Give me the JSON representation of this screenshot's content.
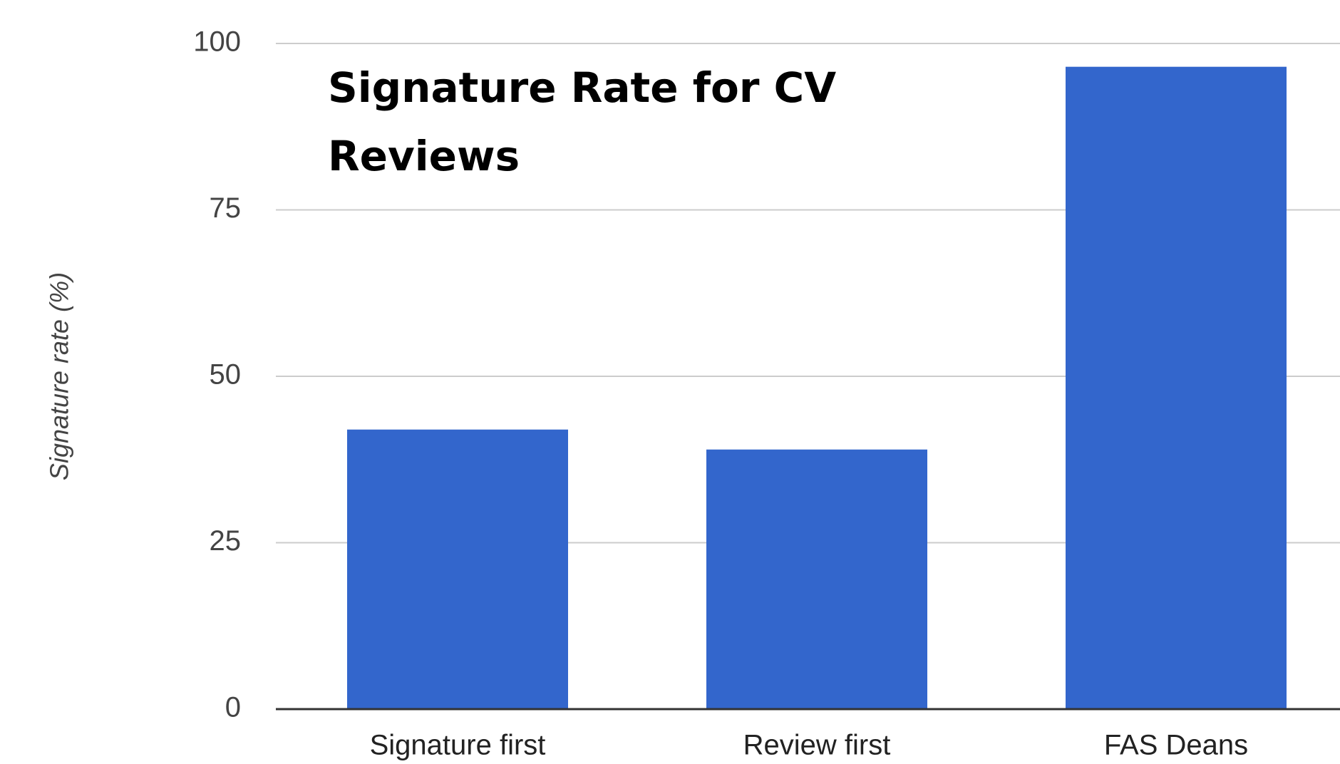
{
  "chart_data": {
    "type": "bar",
    "title": "Signature Rate for CV Reviews",
    "ylabel": "Signature rate (%)",
    "categories": [
      "Signature first",
      "Review first",
      "FAS Deans"
    ],
    "values": [
      42,
      39,
      96.5
    ],
    "color": "#3366cc",
    "ylim": [
      0,
      100
    ],
    "yticks": [
      0,
      25,
      50,
      75,
      100
    ],
    "grid": true
  }
}
